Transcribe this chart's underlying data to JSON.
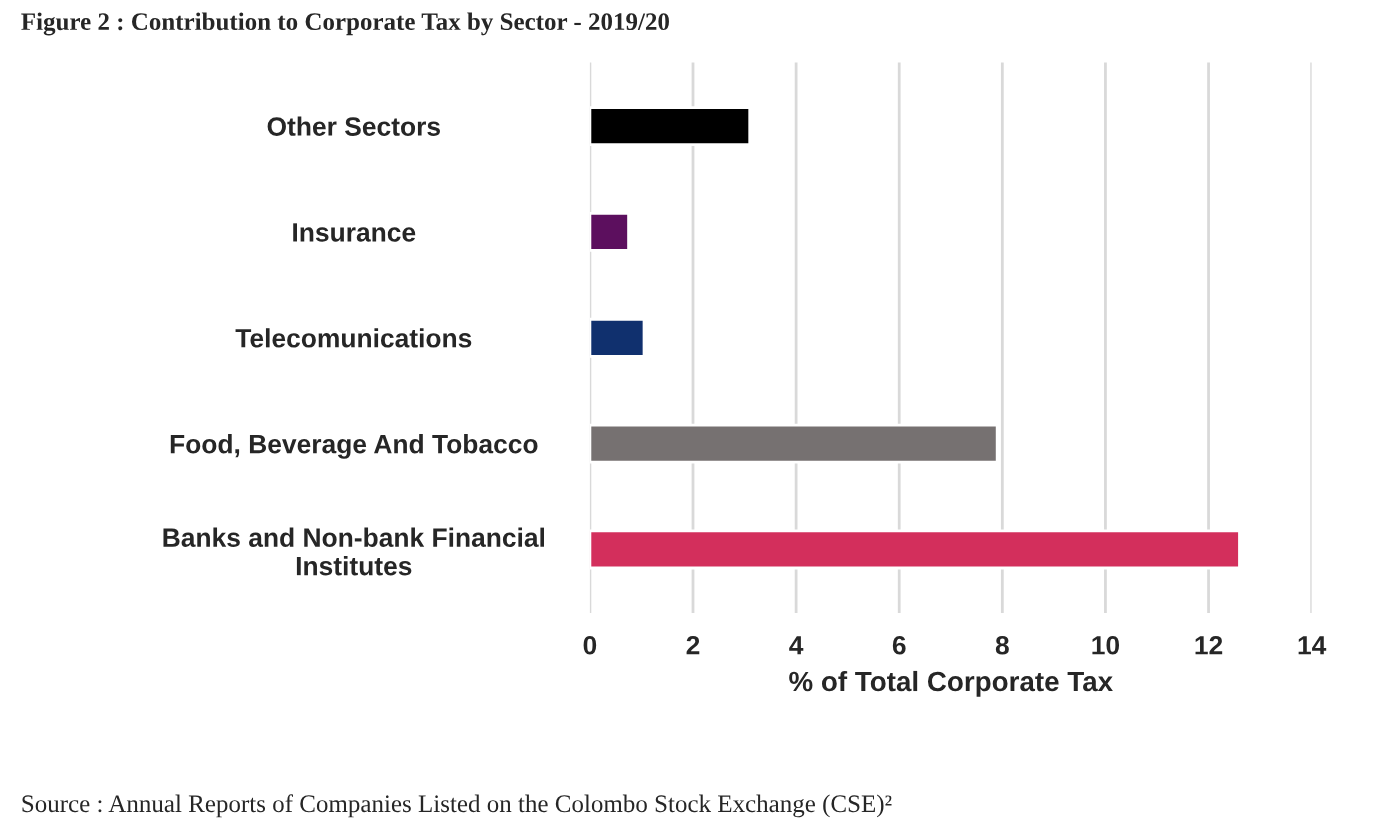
{
  "chart_data": {
    "type": "bar",
    "orientation": "horizontal",
    "title": "Figure 2 : Contribution to Corporate Tax by Sector - 2019/20",
    "categories": [
      "Other Sectors",
      "Insurance",
      "Telecomunications",
      "Food, Beverage And Tobacco",
      "Banks and Non-bank Financial\nInstitutes"
    ],
    "values": [
      3.1,
      0.75,
      1.05,
      7.9,
      12.6
    ],
    "colors": [
      "#000000",
      "#5c0f5e",
      "#10306e",
      "#767171",
      "#d32f5c"
    ],
    "xlim": [
      0,
      14
    ],
    "xticks": [
      0,
      2,
      4,
      6,
      8,
      10,
      12,
      14
    ],
    "xlabel": "% of Total Corporate Tax",
    "grid": "x",
    "annotations": [
      "Source : Annual Reports of Companies Listed on the Colombo Stock Exchange (CSE)²"
    ]
  }
}
